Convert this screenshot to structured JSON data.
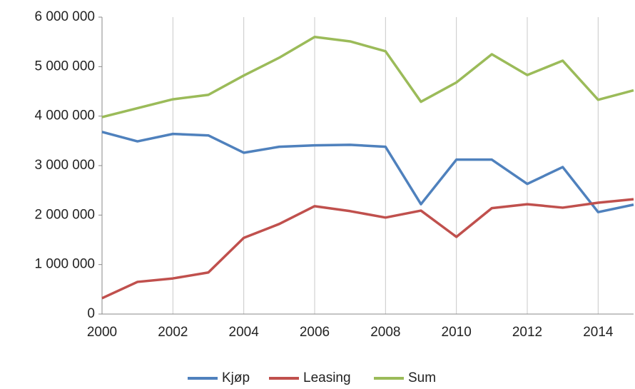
{
  "chart_data": {
    "type": "line",
    "x": [
      2000,
      2001,
      2002,
      2003,
      2004,
      2005,
      2006,
      2007,
      2008,
      2009,
      2010,
      2011,
      2012,
      2013,
      2014,
      2015
    ],
    "series": [
      {
        "name": "Kjøp",
        "color": "#4f81bd",
        "values": [
          3680000,
          3490000,
          3640000,
          3610000,
          3260000,
          3380000,
          3410000,
          3420000,
          3380000,
          2220000,
          3120000,
          3120000,
          2630000,
          2970000,
          2060000,
          2210000
        ]
      },
      {
        "name": "Leasing",
        "color": "#c0504d",
        "values": [
          320000,
          650000,
          720000,
          840000,
          1540000,
          1820000,
          2180000,
          2080000,
          1950000,
          2090000,
          1560000,
          2140000,
          2220000,
          2150000,
          2250000,
          2320000
        ]
      },
      {
        "name": "Sum",
        "color": "#9bbb59",
        "values": [
          3980000,
          4160000,
          4340000,
          4430000,
          4820000,
          5180000,
          5600000,
          5510000,
          5310000,
          4290000,
          4680000,
          5250000,
          4830000,
          5120000,
          4330000,
          4520000
        ]
      }
    ],
    "xlim": [
      2000,
      2015
    ],
    "xticks": [
      2000,
      2002,
      2004,
      2006,
      2008,
      2010,
      2012,
      2014
    ],
    "ylim": [
      0,
      6000000
    ],
    "yticks": [
      0,
      {
        "value": 1000000,
        "label": "1 000 000"
      },
      {
        "value": 2000000,
        "label": "2 000 000"
      },
      {
        "value": 3000000,
        "label": "3 000 000"
      },
      {
        "value": 4000000,
        "label": "4 000 000"
      },
      {
        "value": 5000000,
        "label": "5 000 000"
      },
      {
        "value": 6000000,
        "label": "6 000 000"
      }
    ],
    "grid": "x",
    "legend": "bottom"
  }
}
